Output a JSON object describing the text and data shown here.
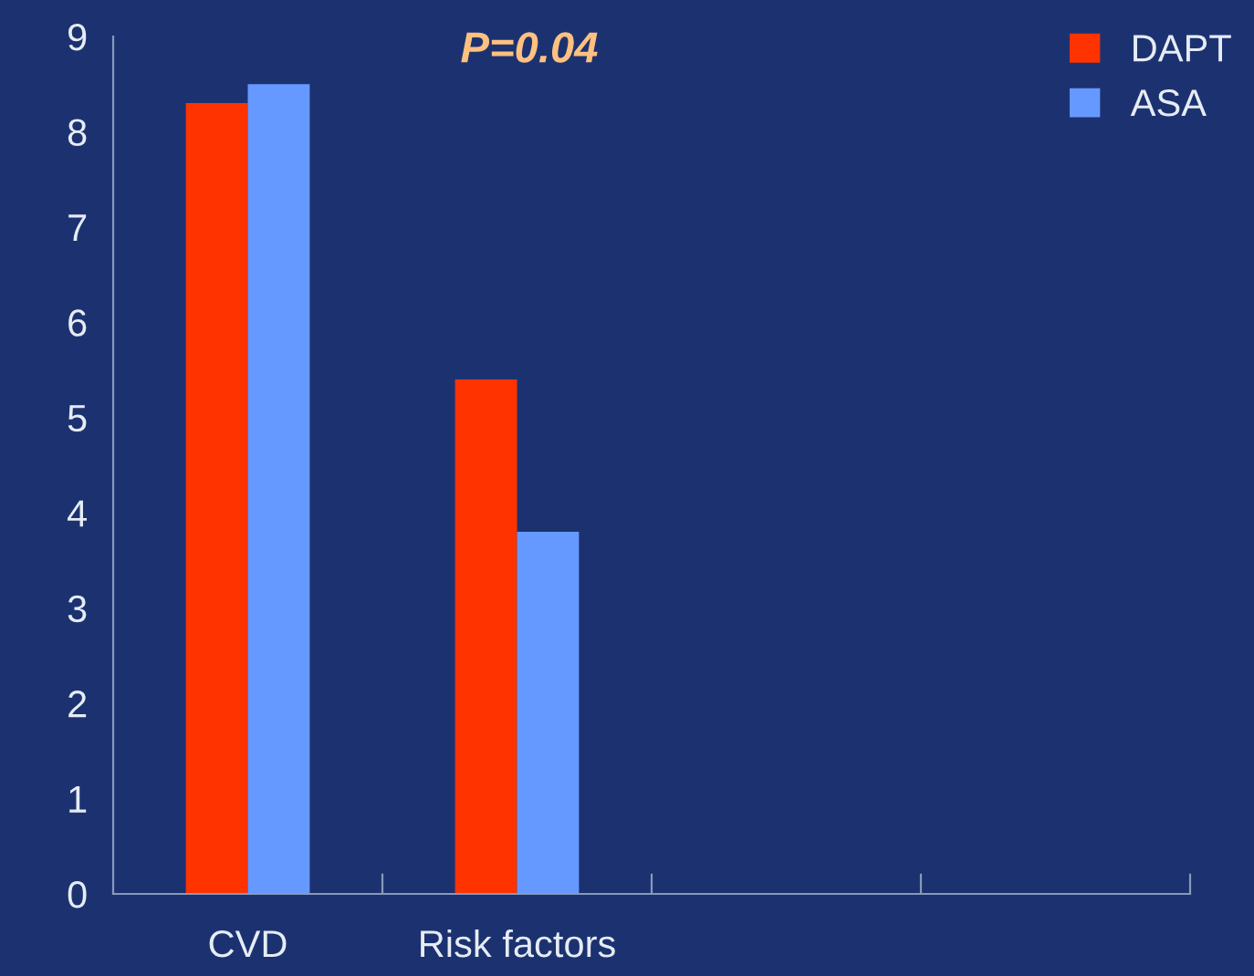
{
  "chart_data": {
    "type": "bar",
    "categories": [
      "CVD",
      "Risk factors",
      null,
      null
    ],
    "series": [
      {
        "name": "DAPT",
        "color": "#ff3300",
        "values": [
          8.3,
          5.4,
          null,
          null
        ]
      },
      {
        "name": "ASA",
        "color": "#6699ff",
        "values": [
          8.5,
          3.8,
          null,
          null
        ]
      }
    ],
    "ylim": [
      0,
      9
    ],
    "yticks": [
      0,
      1,
      2,
      3,
      4,
      5,
      6,
      7,
      8,
      9
    ],
    "annotations": [
      "P=0.04"
    ],
    "legend": "top right",
    "grid": false
  }
}
